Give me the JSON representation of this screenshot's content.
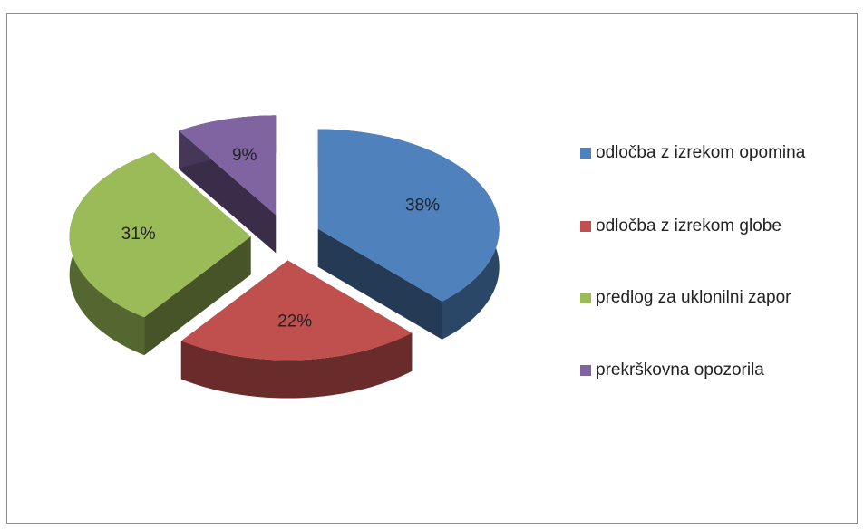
{
  "chart_data": {
    "type": "pie3d",
    "categories": [
      "odločba z izrekom opomina",
      "odločba z izrekom globe",
      "predlog za uklonilni zapor",
      "prekrškovna opozorila"
    ],
    "values": [
      38,
      22,
      31,
      9
    ],
    "value_labels": [
      "38%",
      "22%",
      "31%",
      "9%"
    ],
    "colors": [
      "#4f81bd",
      "#c0504d",
      "#9bbb59",
      "#8064a2"
    ],
    "legend": "right"
  }
}
